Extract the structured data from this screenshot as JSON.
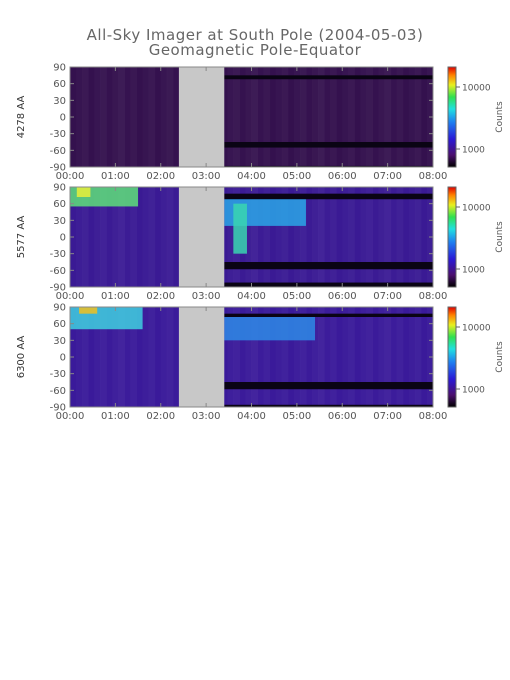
{
  "title": "All-Sky Imager at South Pole (2004-05-03)",
  "subtitle": "Geomagnetic Pole-Equator",
  "chart_data": {
    "type": "heatmap",
    "x_ticks": [
      "00:00",
      "01:00",
      "02:00",
      "03:00",
      "04:00",
      "05:00",
      "06:00",
      "07:00",
      "08:00"
    ],
    "x_range_hours": [
      0,
      8
    ],
    "y_ticks": [
      90,
      60,
      30,
      0,
      -30,
      -60,
      -90
    ],
    "y_range": [
      -90,
      90
    ],
    "no_data_hours": [
      2.4,
      3.4
    ],
    "colorbar": {
      "label": "Counts",
      "ticks": [
        "10000",
        "1000"
      ],
      "scale": "log"
    },
    "panels": [
      {
        "ylabel": "4278 AA",
        "background": "#34114e",
        "dark_bands": [
          [
            -90,
            -88
          ],
          [
            -55,
            -45
          ],
          [
            68,
            75
          ]
        ],
        "bright": []
      },
      {
        "ylabel": "5577 AA",
        "background": "#3a1a94",
        "dark_bands": [
          [
            -90,
            -82
          ],
          [
            -58,
            -45
          ],
          [
            68,
            78
          ]
        ],
        "bright": [
          {
            "t": [
              0.0,
              1.5
            ],
            "lat": [
              55,
              90
            ],
            "color": "#5ee07a"
          },
          {
            "t": [
              0.15,
              0.45
            ],
            "lat": [
              72,
              90
            ],
            "color": "#e8f03a"
          },
          {
            "t": [
              3.4,
              5.2
            ],
            "lat": [
              20,
              70
            ],
            "color": "#2aa6e8"
          },
          {
            "t": [
              3.6,
              3.9
            ],
            "lat": [
              -30,
              60
            ],
            "color": "#3ad6b0"
          }
        ]
      },
      {
        "ylabel": "6300 AA",
        "background": "#3a1a9a",
        "dark_bands": [
          [
            -90,
            -86
          ],
          [
            -58,
            -45
          ],
          [
            72,
            78
          ]
        ],
        "bright": [
          {
            "t": [
              0.0,
              1.6
            ],
            "lat": [
              50,
              90
            ],
            "color": "#40d0e0"
          },
          {
            "t": [
              0.2,
              0.6
            ],
            "lat": [
              78,
              90
            ],
            "color": "#f0c020"
          },
          {
            "t": [
              3.4,
              5.4
            ],
            "lat": [
              30,
              72
            ],
            "color": "#2e8ae6"
          }
        ]
      }
    ]
  }
}
